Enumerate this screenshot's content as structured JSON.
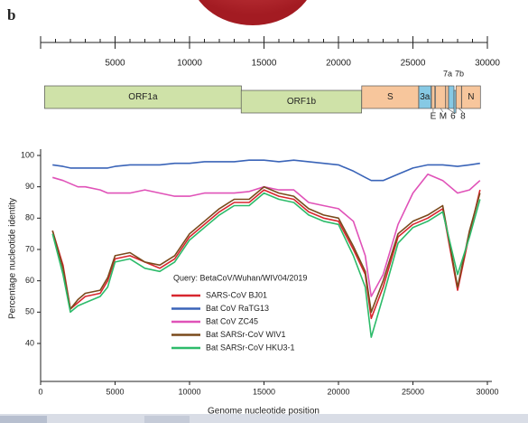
{
  "panel_label": "b",
  "genome": {
    "scale_lim": [
      0,
      30000
    ],
    "scale_ticks": [
      5000,
      10000,
      15000,
      20000,
      25000,
      30000
    ],
    "genes": [
      {
        "name": "ORF1a",
        "start": 266,
        "end": 13483,
        "color": "#cfe2a8",
        "label_pos": "inside"
      },
      {
        "name": "ORF1b",
        "start": 13468,
        "end": 21555,
        "color": "#cfe2a8",
        "label_pos": "inside"
      },
      {
        "name": "S",
        "start": 21563,
        "end": 25384,
        "color": "#f7c69c",
        "label_pos": "inside"
      },
      {
        "name": "3a",
        "start": 25393,
        "end": 26220,
        "color": "#86c9e4",
        "label_pos": "inside"
      },
      {
        "name": "E",
        "start": 26245,
        "end": 26472,
        "color": "#f7c69c",
        "label_pos": "below"
      },
      {
        "name": "M",
        "start": 26523,
        "end": 27191,
        "color": "#f7c69c",
        "label_pos": "below"
      },
      {
        "name": "6",
        "start": 27202,
        "end": 27387,
        "color": "#f7c69c",
        "label_pos": "below"
      },
      {
        "name": "7a",
        "start": 27394,
        "end": 27759,
        "color": "#86c9e4",
        "label_pos": "above"
      },
      {
        "name": "7b",
        "start": 27756,
        "end": 27887,
        "color": "#86c9e4",
        "label_pos": "above"
      },
      {
        "name": "8",
        "start": 27894,
        "end": 28259,
        "color": "#f7c69c",
        "label_pos": "below"
      },
      {
        "name": "N",
        "start": 28274,
        "end": 29533,
        "color": "#f7c69c",
        "label_pos": "inside"
      }
    ]
  },
  "chart_data": {
    "type": "line",
    "x_label": "Genome nucleotide position",
    "y_label": "Percentage nucleotide identity",
    "legend_title": "Query: BetaCoV/Wuhan/WIV04/2019",
    "xlim": [
      0,
      30000
    ],
    "xticks": [
      0,
      5000,
      10000,
      15000,
      20000,
      25000,
      30000
    ],
    "ylim": [
      40,
      100
    ],
    "yticks": [
      40,
      50,
      60,
      70,
      80,
      90,
      100
    ],
    "x": [
      800,
      1500,
      2000,
      2500,
      3000,
      4000,
      4500,
      5000,
      6000,
      7000,
      8000,
      9000,
      10000,
      11000,
      12000,
      13000,
      14000,
      15000,
      16000,
      17000,
      18000,
      19000,
      20000,
      21000,
      21800,
      22200,
      23000,
      24000,
      25000,
      26000,
      27000,
      28000,
      28800,
      29500
    ],
    "series": [
      {
        "name": "SARS-CoV BJ01",
        "color": "#d7262e",
        "values": [
          76,
          65,
          51,
          53,
          55,
          56,
          60,
          67,
          68,
          66,
          64,
          67,
          74,
          78,
          82,
          85,
          85,
          89,
          87,
          86,
          82,
          80,
          79,
          70,
          62,
          48,
          58,
          74,
          78,
          80,
          83,
          57,
          75,
          89
        ]
      },
      {
        "name": "Bat CoV RaTG13",
        "color": "#3a64b8",
        "values": [
          97,
          96.5,
          96,
          96,
          96,
          96,
          96,
          96.5,
          97,
          97,
          97,
          97.5,
          97.5,
          98,
          98,
          98,
          98.5,
          98.5,
          98,
          98.5,
          98,
          97.5,
          97,
          95,
          93,
          92,
          92,
          94,
          96,
          97,
          97,
          96.5,
          97,
          97.5
        ]
      },
      {
        "name": "Bat CoV ZC45",
        "color": "#e052b8",
        "values": [
          93,
          92,
          91,
          90,
          90,
          89,
          88,
          88,
          88,
          89,
          88,
          87,
          87,
          88,
          88,
          88,
          88.5,
          90,
          89,
          89,
          85,
          84,
          83,
          79,
          68,
          55,
          62,
          78,
          88,
          94,
          92,
          88,
          89,
          92
        ]
      },
      {
        "name": "Bat SARSr-CoV WIV1",
        "color": "#7a4a1c",
        "values": [
          76,
          64,
          51,
          54,
          56,
          57,
          61,
          68,
          69,
          66,
          65,
          68,
          75,
          79,
          83,
          86,
          86,
          90,
          88,
          87,
          83,
          81,
          80,
          71,
          63,
          50,
          60,
          75,
          79,
          81,
          84,
          58,
          76,
          88
        ]
      },
      {
        "name": "Bat SARSr-CoV HKU3-1",
        "color": "#2dbb6a",
        "values": [
          75,
          62,
          50,
          52,
          53,
          55,
          58,
          66,
          67,
          64,
          63,
          66,
          73,
          77,
          81,
          84,
          84,
          88,
          86,
          85,
          81,
          79,
          78,
          68,
          58,
          42,
          55,
          72,
          77,
          79,
          82,
          62,
          74,
          86
        ]
      }
    ]
  }
}
